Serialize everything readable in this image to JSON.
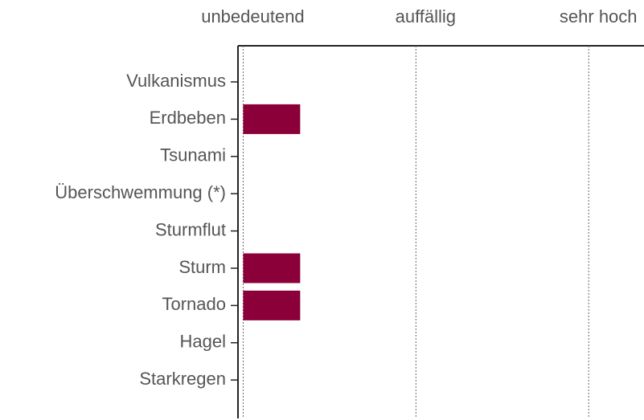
{
  "chart_data": {
    "type": "bar",
    "orientation": "horizontal",
    "categories": [
      "Vulkanismus",
      "Erdbeben",
      "Tsunami",
      "Überschwemmung (*)",
      "Sturmflut",
      "Sturm",
      "Tornado",
      "Hagel",
      "Starkregen"
    ],
    "values": [
      0,
      0.33,
      0,
      0,
      0,
      0.33,
      0.33,
      0,
      0
    ],
    "color": "#8b0038",
    "xlim": [
      -0.03,
      2.32
    ],
    "xticks": [
      {
        "value": 0,
        "label": "unbedeutend"
      },
      {
        "value": 1,
        "label": "auffällig"
      },
      {
        "value": 2,
        "label": "sehr hoch"
      }
    ],
    "grid": true
  }
}
